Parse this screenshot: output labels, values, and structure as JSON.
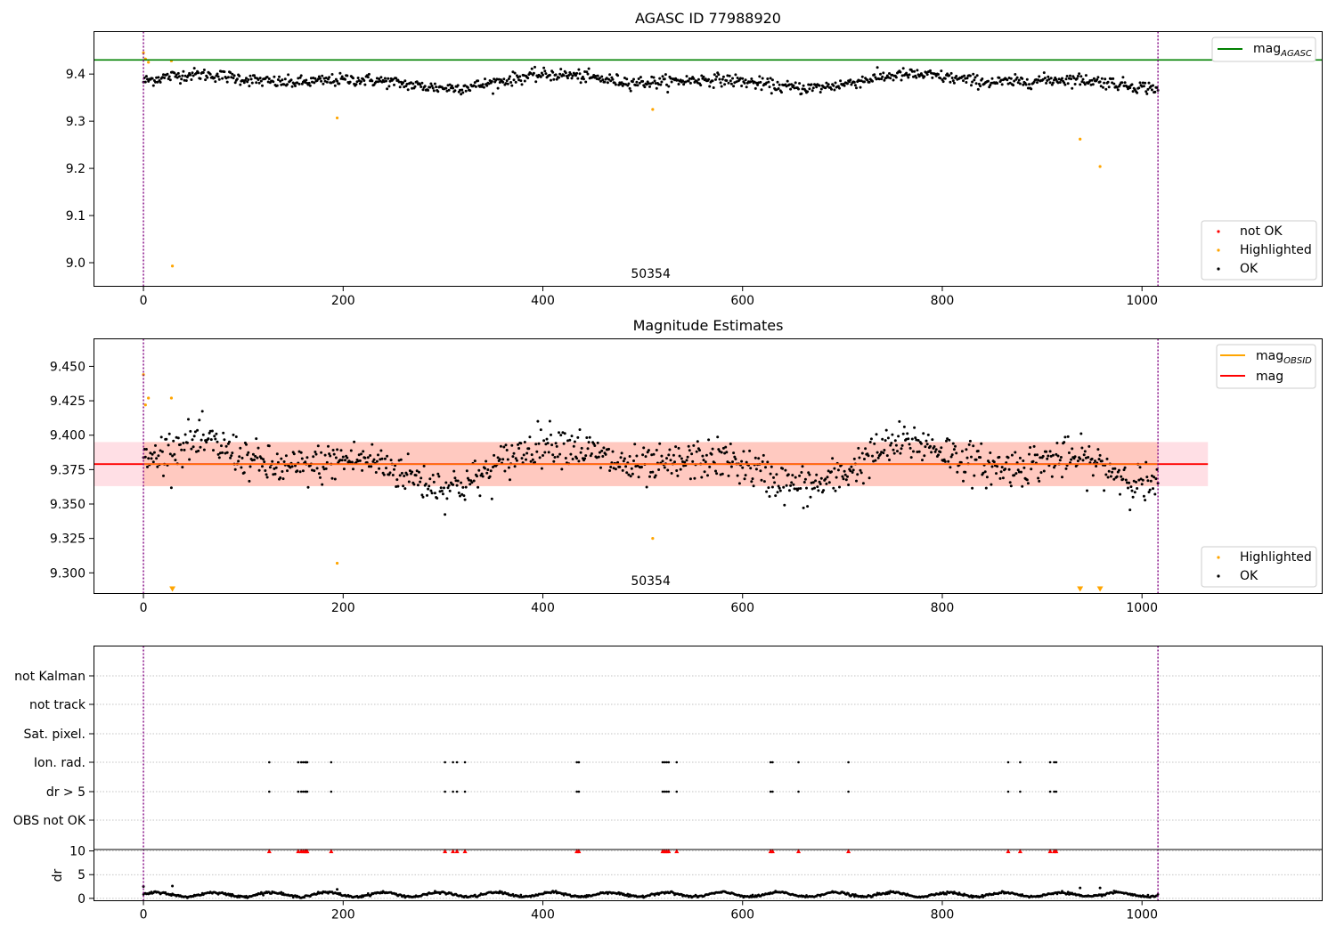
{
  "chart_data": [
    {
      "type": "scatter",
      "title": "AGASC ID 77988920",
      "xlim": [
        -50,
        1180
      ],
      "ylim": [
        8.95,
        9.49
      ],
      "x_ticks": [
        0,
        200,
        400,
        600,
        800,
        1000
      ],
      "y_ticks": [
        9.0,
        9.1,
        9.2,
        9.3,
        9.4
      ],
      "y_tick_labels": [
        "9.0",
        "9.1",
        "9.2",
        "9.3",
        "9.4"
      ],
      "annotation": "50354",
      "annotation_x": 508,
      "vlines_x": [
        0,
        1016
      ],
      "hlines": [
        {
          "name_main": "mag",
          "name_sub": "AGASC",
          "y": 9.43,
          "color": "#008000"
        }
      ],
      "legend_top": {
        "entries": [
          {
            "label_main": "mag",
            "label_sub": "AGASC",
            "color": "#008000"
          }
        ],
        "position": "top-right"
      },
      "legend_bottom": {
        "entries": [
          {
            "label": "not OK",
            "color": "#ff0000"
          },
          {
            "label": "Highlighted",
            "color": "#ffa500"
          },
          {
            "label": "OK",
            "color": "#000000"
          }
        ],
        "position": "bottom-right"
      },
      "series": [
        {
          "name": "OK",
          "color": "#000000",
          "base": 9.385,
          "amp": 0.016,
          "noise": 0.011
        },
        {
          "name": "Highlighted",
          "color": "#ffa500",
          "points": [
            [
              0,
              9.445
            ],
            [
              2,
              9.432
            ],
            [
              5,
              9.425
            ],
            [
              28,
              9.428
            ],
            [
              29,
              8.993
            ],
            [
              194,
              9.307
            ],
            [
              510,
              9.325
            ],
            [
              938,
              9.262
            ],
            [
              958,
              9.204
            ]
          ]
        }
      ]
    },
    {
      "type": "scatter",
      "title": "Magnitude Estimates",
      "xlim": [
        -50,
        1180
      ],
      "ylim": [
        9.285,
        9.47
      ],
      "x_ticks": [
        0,
        200,
        400,
        600,
        800,
        1000
      ],
      "y_ticks": [
        9.3,
        9.325,
        9.35,
        9.375,
        9.4,
        9.425,
        9.45
      ],
      "y_tick_labels": [
        "9.300",
        "9.325",
        "9.350",
        "9.375",
        "9.400",
        "9.425",
        "9.450"
      ],
      "annotation": "50354",
      "annotation_x": 508,
      "vlines_x": [
        0,
        1016
      ],
      "mag_line": {
        "y": 9.379,
        "x_range": [
          -50,
          1066
        ],
        "color": "#ff0000"
      },
      "mag_band": {
        "y_range": [
          9.363,
          9.395
        ],
        "x_range": [
          -50,
          1066
        ],
        "color": "#ffc0cb"
      },
      "obsid_band": {
        "y_range": [
          9.363,
          9.395
        ],
        "x_range": [
          0,
          1016
        ],
        "color": "#ffa07a"
      },
      "obsid_line": {
        "y": 9.379,
        "x_range": [
          0,
          1016
        ],
        "color": "#ffa500"
      },
      "legend_top": {
        "entries": [
          {
            "label_main": "mag",
            "label_sub": "OBSID",
            "color": "#ffa500"
          },
          {
            "label_main": "mag",
            "label_sub": "",
            "color": "#ff0000"
          }
        ],
        "position": "top-right"
      },
      "legend_bottom": {
        "entries": [
          {
            "label": "Highlighted",
            "color": "#ffa500"
          },
          {
            "label": "OK",
            "color": "#000000"
          }
        ],
        "position": "bottom-right"
      },
      "series": [
        {
          "name": "OK",
          "color": "#000000",
          "base": 9.379,
          "amp": 0.018,
          "noise": 0.012
        },
        {
          "name": "Highlighted",
          "color": "#ffa500",
          "points": [
            [
              0,
              9.444
            ],
            [
              2,
              9.422
            ],
            [
              5,
              9.427
            ],
            [
              28,
              9.427
            ],
            [
              194,
              9.307
            ],
            [
              510,
              9.325
            ]
          ],
          "off_scale_x": [
            29,
            938,
            958
          ]
        }
      ]
    },
    {
      "type": "scatter",
      "title": "",
      "xlim": [
        -50,
        1180
      ],
      "x_ticks": [
        0,
        200,
        400,
        600,
        800,
        1000
      ],
      "flag_rows": [
        "not Kalman",
        "not track",
        "Sat. pixel.",
        "Ion. rad.",
        "dr > 5",
        "OBS not OK"
      ],
      "flag_points": {
        "Ion. rad.": [
          126,
          155,
          158,
          160,
          162,
          163,
          164,
          188,
          302,
          310,
          314,
          322,
          434,
          436,
          520,
          522,
          524,
          526,
          534,
          628,
          630,
          656,
          706,
          866,
          878,
          908,
          912,
          914
        ],
        "dr > 5": [
          126,
          155,
          158,
          160,
          162,
          163,
          164,
          188,
          302,
          310,
          314,
          322,
          434,
          436,
          520,
          522,
          524,
          526,
          534,
          628,
          630,
          656,
          706,
          866,
          878,
          908,
          912,
          914
        ]
      },
      "dr_axis": {
        "ylabel": "dr",
        "ylim": [
          -0.5,
          10.3
        ],
        "y_ticks": [
          0,
          5,
          10
        ],
        "y_tick_labels": [
          "0",
          "5",
          "10"
        ],
        "capped_value": 10,
        "capped_color": "#ff0000",
        "spikes": [
          [
            0,
            2.5
          ],
          [
            29,
            2.6
          ],
          [
            194,
            1.9
          ],
          [
            938,
            2.2
          ],
          [
            958,
            2.2
          ]
        ]
      },
      "vlines_x": [
        0,
        1016
      ]
    }
  ]
}
